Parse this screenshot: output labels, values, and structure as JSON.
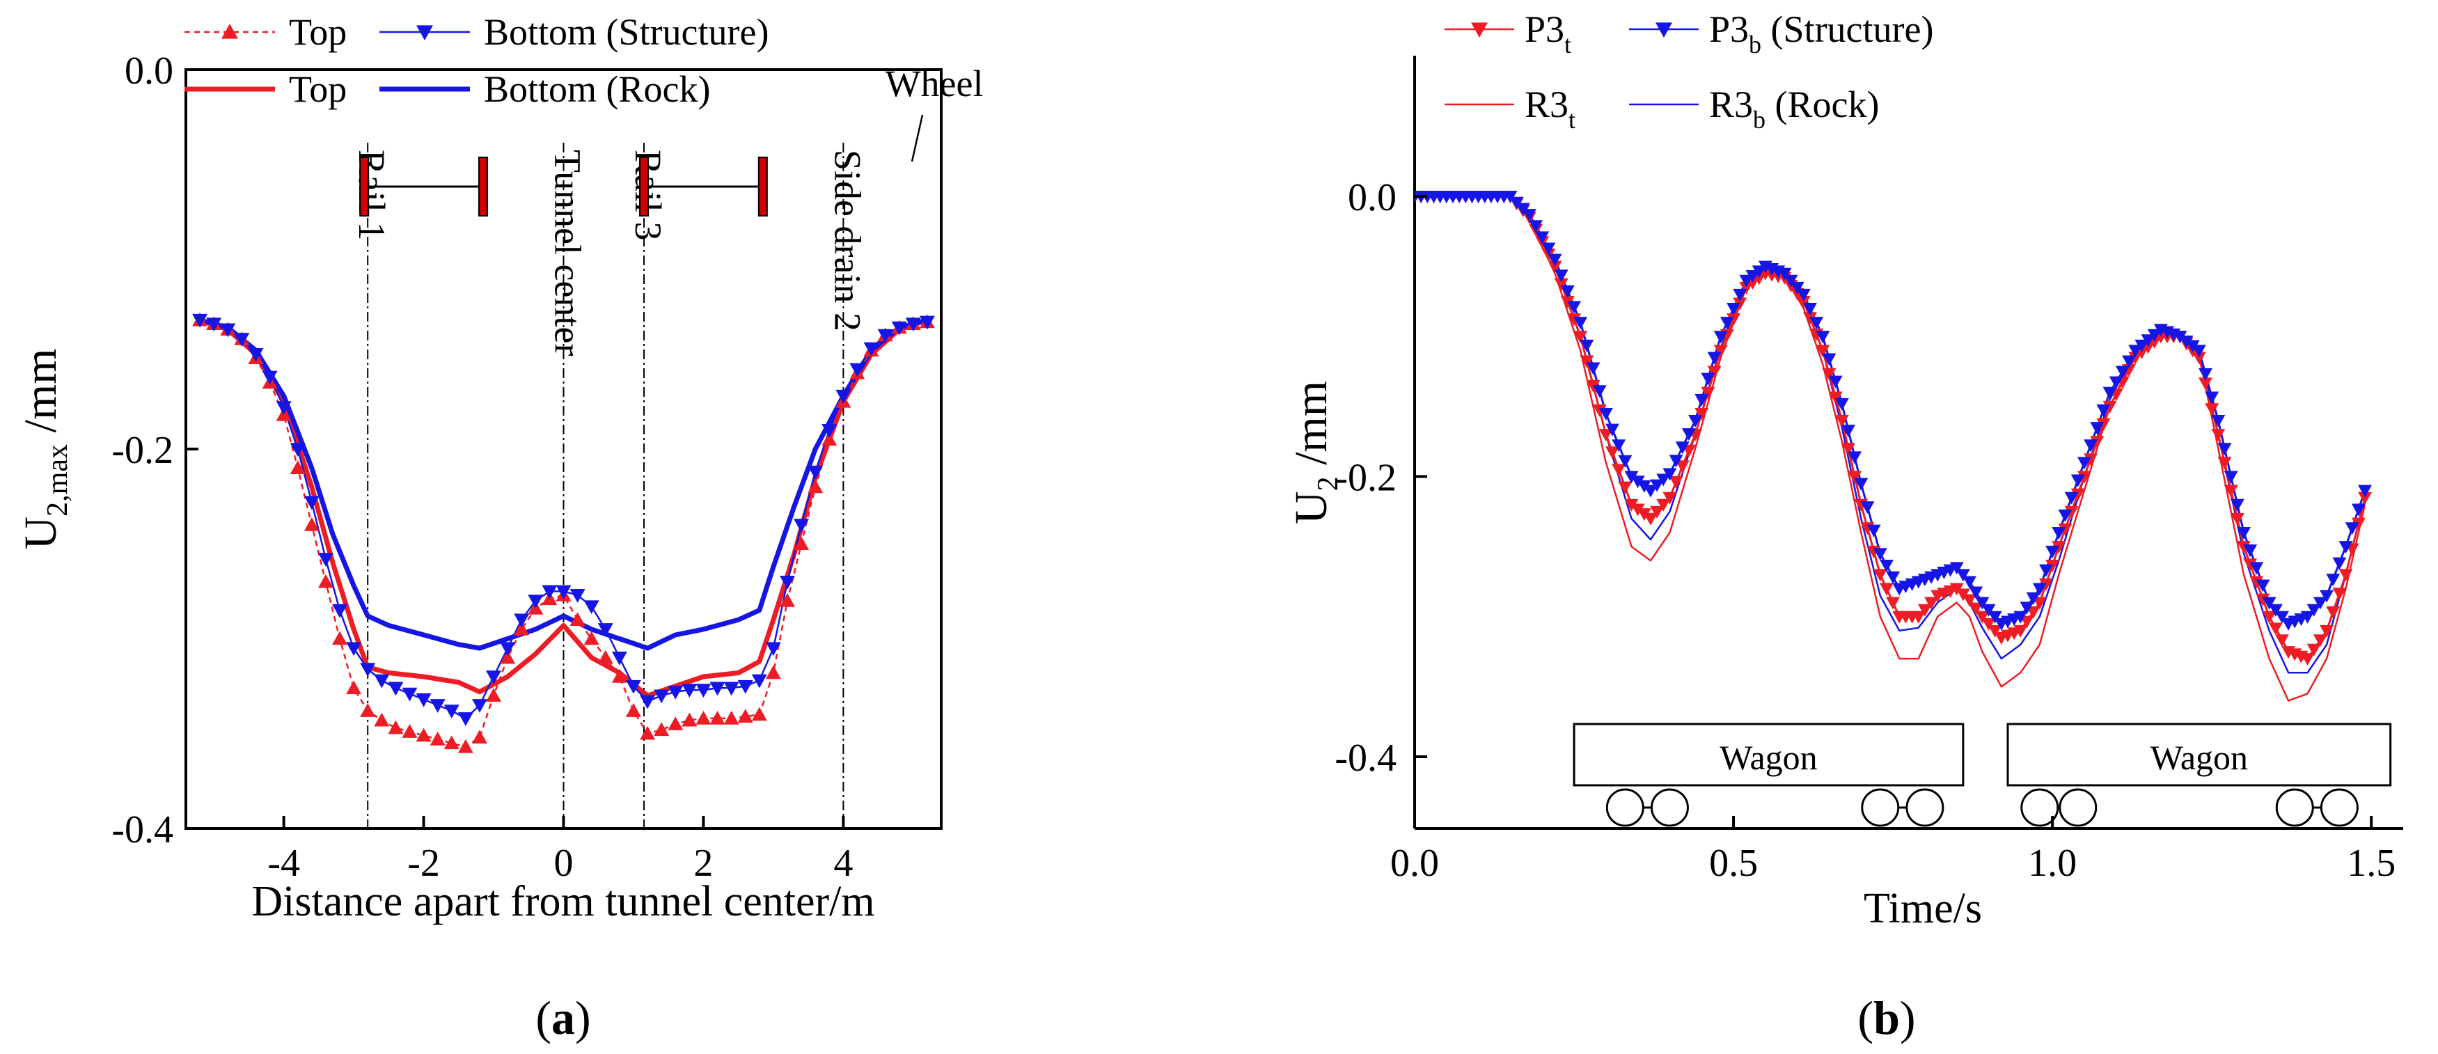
{
  "panels": {
    "a": {
      "label_prefix": "(",
      "label_letter": "a",
      "label_suffix": ")"
    },
    "b": {
      "label_prefix": "(",
      "label_letter": "b",
      "label_suffix": ")"
    }
  },
  "colors": {
    "red": "#ee1c24",
    "blue": "#1515e6",
    "black": "#000000"
  },
  "chart_data": [
    {
      "id": "a",
      "type": "line",
      "title": "",
      "xlabel": "Distance apart from tunnel center/m",
      "ylabel": {
        "main": "U",
        "sub": "2,max",
        "unit": " /mm"
      },
      "xlim": [
        -5.4,
        5.4
      ],
      "ylim": [
        -0.4,
        0.0
      ],
      "xticks": [
        -4,
        -2,
        0,
        2,
        4
      ],
      "xtick_labels": [
        "-4",
        "-2",
        "0",
        "2",
        "4"
      ],
      "yticks": [
        0.0,
        -0.2,
        -0.4
      ],
      "ytick_labels": [
        "0.0",
        "-0.2",
        "-0.4"
      ],
      "legend": [
        {
          "label": "Top",
          "color": "#ee1c24",
          "style": "dashed-triangle-up"
        },
        {
          "label": "Bottom (Structure)",
          "color": "#1515e6",
          "style": "line-triangle-down"
        },
        {
          "label": "Top",
          "color": "#ee1c24",
          "style": "thick"
        },
        {
          "label": "Bottom (Rock)",
          "color": "#1515e6",
          "style": "thick"
        }
      ],
      "vlines": [
        {
          "x": -2.8,
          "label": "Rail 1"
        },
        {
          "x": 0.0,
          "label": "Tunnel center"
        },
        {
          "x": 1.15,
          "label": "Rail 3"
        },
        {
          "x": 4.0,
          "label": "Side drain 2"
        }
      ],
      "axles": [
        {
          "x1": -2.85,
          "x2": -1.15
        },
        {
          "x1": 1.15,
          "x2": 2.85
        }
      ],
      "wheel_label": "Wheel",
      "series": [
        {
          "name": "Top (Structure)",
          "x": [
            -5.2,
            -5.0,
            -4.8,
            -4.6,
            -4.4,
            -4.2,
            -4.0,
            -3.8,
            -3.6,
            -3.4,
            -3.2,
            -3.0,
            -2.8,
            -2.6,
            -2.4,
            -2.2,
            -2.0,
            -1.8,
            -1.6,
            -1.4,
            -1.2,
            -1.0,
            -0.8,
            -0.6,
            -0.4,
            -0.2,
            0.0,
            0.2,
            0.4,
            0.6,
            0.8,
            1.0,
            1.2,
            1.4,
            1.6,
            1.8,
            2.0,
            2.2,
            2.4,
            2.6,
            2.8,
            3.0,
            3.2,
            3.4,
            3.6,
            3.8,
            4.0,
            4.2,
            4.4,
            4.6,
            4.8,
            5.0,
            5.2
          ],
          "values": [
            -0.132,
            -0.134,
            -0.137,
            -0.142,
            -0.152,
            -0.165,
            -0.182,
            -0.21,
            -0.24,
            -0.27,
            -0.3,
            -0.326,
            -0.338,
            -0.343,
            -0.347,
            -0.349,
            -0.351,
            -0.353,
            -0.355,
            -0.357,
            -0.352,
            -0.33,
            -0.31,
            -0.295,
            -0.284,
            -0.279,
            -0.277,
            -0.29,
            -0.3,
            -0.31,
            -0.32,
            -0.338,
            -0.35,
            -0.348,
            -0.345,
            -0.343,
            -0.342,
            -0.342,
            -0.342,
            -0.341,
            -0.34,
            -0.318,
            -0.28,
            -0.25,
            -0.22,
            -0.195,
            -0.175,
            -0.16,
            -0.148,
            -0.14,
            -0.136,
            -0.134,
            -0.133
          ]
        },
        {
          "name": "Bottom (Structure)",
          "x": [
            -5.2,
            -5.0,
            -4.8,
            -4.6,
            -4.4,
            -4.2,
            -4.0,
            -3.8,
            -3.6,
            -3.4,
            -3.2,
            -3.0,
            -2.8,
            -2.6,
            -2.4,
            -2.2,
            -2.0,
            -1.8,
            -1.6,
            -1.4,
            -1.2,
            -1.0,
            -0.8,
            -0.6,
            -0.4,
            -0.2,
            0.0,
            0.2,
            0.4,
            0.6,
            0.8,
            1.0,
            1.2,
            1.4,
            1.6,
            1.8,
            2.0,
            2.2,
            2.4,
            2.6,
            2.8,
            3.0,
            3.2,
            3.4,
            3.6,
            3.8,
            4.0,
            4.2,
            4.4,
            4.6,
            4.8,
            5.0,
            5.2
          ],
          "values": [
            -0.132,
            -0.134,
            -0.137,
            -0.142,
            -0.15,
            -0.162,
            -0.178,
            -0.2,
            -0.228,
            -0.258,
            -0.285,
            -0.305,
            -0.316,
            -0.322,
            -0.326,
            -0.329,
            -0.332,
            -0.335,
            -0.338,
            -0.342,
            -0.335,
            -0.32,
            -0.305,
            -0.29,
            -0.28,
            -0.275,
            -0.275,
            -0.277,
            -0.283,
            -0.295,
            -0.31,
            -0.325,
            -0.333,
            -0.33,
            -0.328,
            -0.327,
            -0.327,
            -0.326,
            -0.326,
            -0.325,
            -0.322,
            -0.305,
            -0.27,
            -0.24,
            -0.212,
            -0.19,
            -0.172,
            -0.158,
            -0.147,
            -0.14,
            -0.136,
            -0.134,
            -0.133
          ]
        },
        {
          "name": "Top (Rock)",
          "x": [
            -5.2,
            -4.8,
            -4.4,
            -4.0,
            -3.6,
            -3.3,
            -3.0,
            -2.8,
            -2.5,
            -2.0,
            -1.5,
            -1.2,
            -0.8,
            -0.4,
            0.0,
            0.4,
            0.8,
            1.2,
            1.6,
            2.0,
            2.5,
            2.8,
            3.0,
            3.3,
            3.6,
            4.0,
            4.4,
            4.8,
            5.2
          ],
          "values": [
            -0.132,
            -0.137,
            -0.15,
            -0.175,
            -0.22,
            -0.26,
            -0.295,
            -0.315,
            -0.318,
            -0.32,
            -0.323,
            -0.328,
            -0.32,
            -0.308,
            -0.293,
            -0.31,
            -0.318,
            -0.33,
            -0.325,
            -0.32,
            -0.318,
            -0.312,
            -0.29,
            -0.255,
            -0.215,
            -0.175,
            -0.15,
            -0.137,
            -0.132
          ]
        },
        {
          "name": "Bottom (Rock)",
          "x": [
            -5.2,
            -4.8,
            -4.4,
            -4.0,
            -3.6,
            -3.3,
            -3.0,
            -2.8,
            -2.5,
            -2.0,
            -1.5,
            -1.2,
            -0.8,
            -0.4,
            0.0,
            0.4,
            0.8,
            1.2,
            1.6,
            2.0,
            2.5,
            2.8,
            3.0,
            3.3,
            3.6,
            4.0,
            4.4,
            4.8,
            5.2
          ],
          "values": [
            -0.132,
            -0.136,
            -0.148,
            -0.172,
            -0.21,
            -0.245,
            -0.272,
            -0.288,
            -0.293,
            -0.298,
            -0.303,
            -0.305,
            -0.3,
            -0.295,
            -0.288,
            -0.295,
            -0.3,
            -0.305,
            -0.298,
            -0.295,
            -0.29,
            -0.285,
            -0.262,
            -0.23,
            -0.2,
            -0.172,
            -0.148,
            -0.136,
            -0.132
          ]
        }
      ]
    },
    {
      "id": "b",
      "type": "line",
      "title": "",
      "xlabel": "Time/s",
      "ylabel": {
        "main": "U",
        "sub": "2",
        "unit": " /mm"
      },
      "xlim": [
        0.0,
        1.55
      ],
      "ylim": [
        -0.45,
        0.1
      ],
      "xticks": [
        0.0,
        0.5,
        1.0,
        1.5
      ],
      "xtick_labels": [
        "0.0",
        "0.5",
        "1.0",
        "1.5"
      ],
      "yticks": [
        0.0,
        -0.2,
        -0.4
      ],
      "ytick_labels": [
        "0.0",
        "-0.2",
        "-0.4"
      ],
      "legend": [
        {
          "label": "P3",
          "sub": "t",
          "color": "#ee1c24",
          "style": "line-triangle-down"
        },
        {
          "label": "P3",
          "sub": "b",
          "after": " (Structure)",
          "color": "#1515e6",
          "style": "line-triangle-down"
        },
        {
          "label": "R3",
          "sub": "t",
          "color": "#ee1c24",
          "style": "thin"
        },
        {
          "label": "R3",
          "sub": "b",
          "after": " (Rock)",
          "color": "#1515e6",
          "style": "thin"
        }
      ],
      "wagons": [
        {
          "label": "Wagon",
          "x1": 0.25,
          "x2": 0.86
        },
        {
          "label": "Wagon",
          "x1": 0.93,
          "x2": 1.53
        }
      ],
      "wheel_positions": [
        0.33,
        0.4,
        0.73,
        0.8,
        0.98,
        1.04,
        1.38,
        1.45
      ],
      "series": [
        {
          "name": "P3t",
          "x": [
            0.0,
            0.05,
            0.1,
            0.15,
            0.18,
            0.22,
            0.26,
            0.3,
            0.34,
            0.37,
            0.4,
            0.44,
            0.48,
            0.52,
            0.55,
            0.58,
            0.61,
            0.64,
            0.67,
            0.7,
            0.73,
            0.76,
            0.79,
            0.82,
            0.85,
            0.87,
            0.89,
            0.92,
            0.95,
            0.98,
            1.01,
            1.05,
            1.09,
            1.13,
            1.17,
            1.2,
            1.23,
            1.26,
            1.3,
            1.34,
            1.37,
            1.4,
            1.43,
            1.46,
            1.49
          ],
          "values": [
            0.0,
            0.0,
            0.0,
            0.0,
            -0.015,
            -0.05,
            -0.1,
            -0.17,
            -0.22,
            -0.23,
            -0.215,
            -0.17,
            -0.11,
            -0.065,
            -0.055,
            -0.058,
            -0.075,
            -0.11,
            -0.16,
            -0.22,
            -0.27,
            -0.3,
            -0.3,
            -0.285,
            -0.28,
            -0.288,
            -0.3,
            -0.315,
            -0.31,
            -0.29,
            -0.25,
            -0.2,
            -0.15,
            -0.115,
            -0.1,
            -0.1,
            -0.115,
            -0.17,
            -0.25,
            -0.3,
            -0.325,
            -0.33,
            -0.31,
            -0.27,
            -0.215
          ]
        },
        {
          "name": "P3b",
          "x": [
            0.0,
            0.05,
            0.1,
            0.15,
            0.18,
            0.22,
            0.26,
            0.3,
            0.34,
            0.37,
            0.4,
            0.44,
            0.48,
            0.52,
            0.55,
            0.58,
            0.61,
            0.64,
            0.67,
            0.7,
            0.73,
            0.76,
            0.79,
            0.82,
            0.85,
            0.87,
            0.89,
            0.92,
            0.95,
            0.98,
            1.01,
            1.05,
            1.09,
            1.13,
            1.17,
            1.2,
            1.23,
            1.26,
            1.3,
            1.34,
            1.37,
            1.4,
            1.43,
            1.46,
            1.49
          ],
          "values": [
            0.0,
            0.0,
            0.0,
            0.0,
            -0.013,
            -0.045,
            -0.09,
            -0.155,
            -0.2,
            -0.21,
            -0.198,
            -0.16,
            -0.1,
            -0.06,
            -0.05,
            -0.055,
            -0.07,
            -0.1,
            -0.148,
            -0.205,
            -0.255,
            -0.28,
            -0.275,
            -0.27,
            -0.265,
            -0.275,
            -0.29,
            -0.305,
            -0.3,
            -0.28,
            -0.24,
            -0.19,
            -0.14,
            -0.11,
            -0.095,
            -0.1,
            -0.11,
            -0.16,
            -0.24,
            -0.29,
            -0.305,
            -0.3,
            -0.285,
            -0.25,
            -0.21
          ]
        },
        {
          "name": "R3t",
          "x": [
            0.0,
            0.05,
            0.1,
            0.15,
            0.18,
            0.22,
            0.26,
            0.3,
            0.34,
            0.37,
            0.4,
            0.44,
            0.48,
            0.52,
            0.55,
            0.58,
            0.61,
            0.64,
            0.67,
            0.7,
            0.73,
            0.76,
            0.79,
            0.82,
            0.85,
            0.87,
            0.89,
            0.92,
            0.95,
            0.98,
            1.01,
            1.05,
            1.09,
            1.13,
            1.17,
            1.2,
            1.23,
            1.26,
            1.3,
            1.34,
            1.37,
            1.4,
            1.43,
            1.46,
            1.49
          ],
          "values": [
            0.0,
            0.0,
            0.0,
            0.0,
            -0.016,
            -0.055,
            -0.11,
            -0.19,
            -0.25,
            -0.26,
            -0.24,
            -0.18,
            -0.115,
            -0.065,
            -0.052,
            -0.057,
            -0.08,
            -0.12,
            -0.175,
            -0.24,
            -0.3,
            -0.33,
            -0.33,
            -0.3,
            -0.29,
            -0.3,
            -0.325,
            -0.35,
            -0.34,
            -0.32,
            -0.27,
            -0.21,
            -0.15,
            -0.112,
            -0.095,
            -0.098,
            -0.113,
            -0.18,
            -0.27,
            -0.33,
            -0.36,
            -0.355,
            -0.33,
            -0.28,
            -0.22
          ]
        },
        {
          "name": "R3b",
          "x": [
            0.0,
            0.05,
            0.1,
            0.15,
            0.18,
            0.22,
            0.26,
            0.3,
            0.34,
            0.37,
            0.4,
            0.44,
            0.48,
            0.52,
            0.55,
            0.58,
            0.61,
            0.64,
            0.67,
            0.7,
            0.73,
            0.76,
            0.79,
            0.82,
            0.85,
            0.87,
            0.89,
            0.92,
            0.95,
            0.98,
            1.01,
            1.05,
            1.09,
            1.13,
            1.17,
            1.2,
            1.23,
            1.26,
            1.3,
            1.34,
            1.37,
            1.4,
            1.43,
            1.46,
            1.49
          ],
          "values": [
            0.0,
            0.0,
            0.0,
            0.0,
            -0.015,
            -0.05,
            -0.1,
            -0.17,
            -0.23,
            -0.245,
            -0.225,
            -0.17,
            -0.108,
            -0.062,
            -0.05,
            -0.055,
            -0.075,
            -0.11,
            -0.165,
            -0.23,
            -0.285,
            -0.31,
            -0.308,
            -0.29,
            -0.28,
            -0.29,
            -0.308,
            -0.33,
            -0.32,
            -0.3,
            -0.26,
            -0.2,
            -0.145,
            -0.11,
            -0.093,
            -0.097,
            -0.11,
            -0.17,
            -0.255,
            -0.31,
            -0.34,
            -0.34,
            -0.32,
            -0.27,
            -0.215
          ]
        }
      ]
    }
  ]
}
